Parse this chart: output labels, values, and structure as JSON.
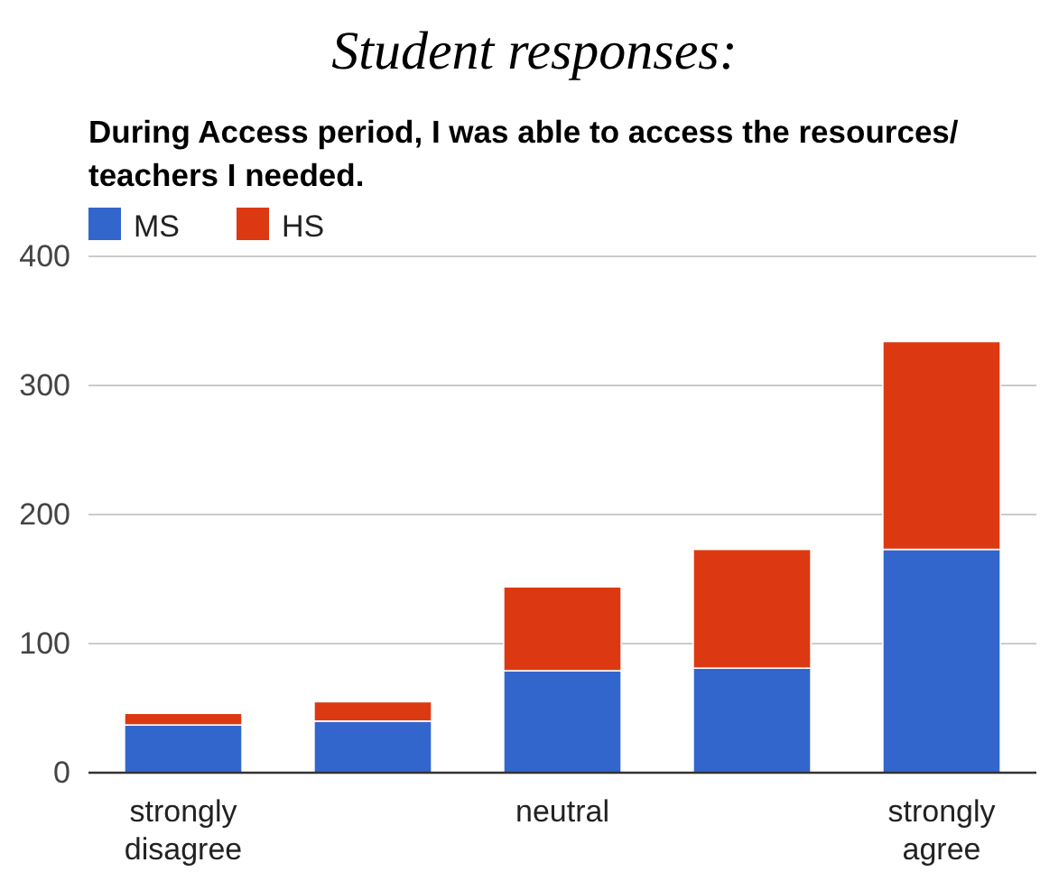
{
  "chart_data": {
    "type": "bar",
    "title": "Student responses:",
    "subtitle": "During Access period, I was able to access the resources/ teachers I needed.",
    "categories": [
      "strongly disagree",
      null,
      "neutral",
      null,
      "strongly agree"
    ],
    "series": [
      {
        "name": "MS",
        "color": "#3366cc",
        "values": [
          37,
          40,
          79,
          81,
          173
        ]
      },
      {
        "name": "HS",
        "color": "#dc3912",
        "values": [
          9,
          15,
          65,
          92,
          161
        ]
      }
    ],
    "stacked": true,
    "ylim": [
      0,
      400
    ],
    "yticks": [
      0,
      100,
      200,
      300,
      400
    ],
    "grid": "y",
    "legend": "top left"
  }
}
